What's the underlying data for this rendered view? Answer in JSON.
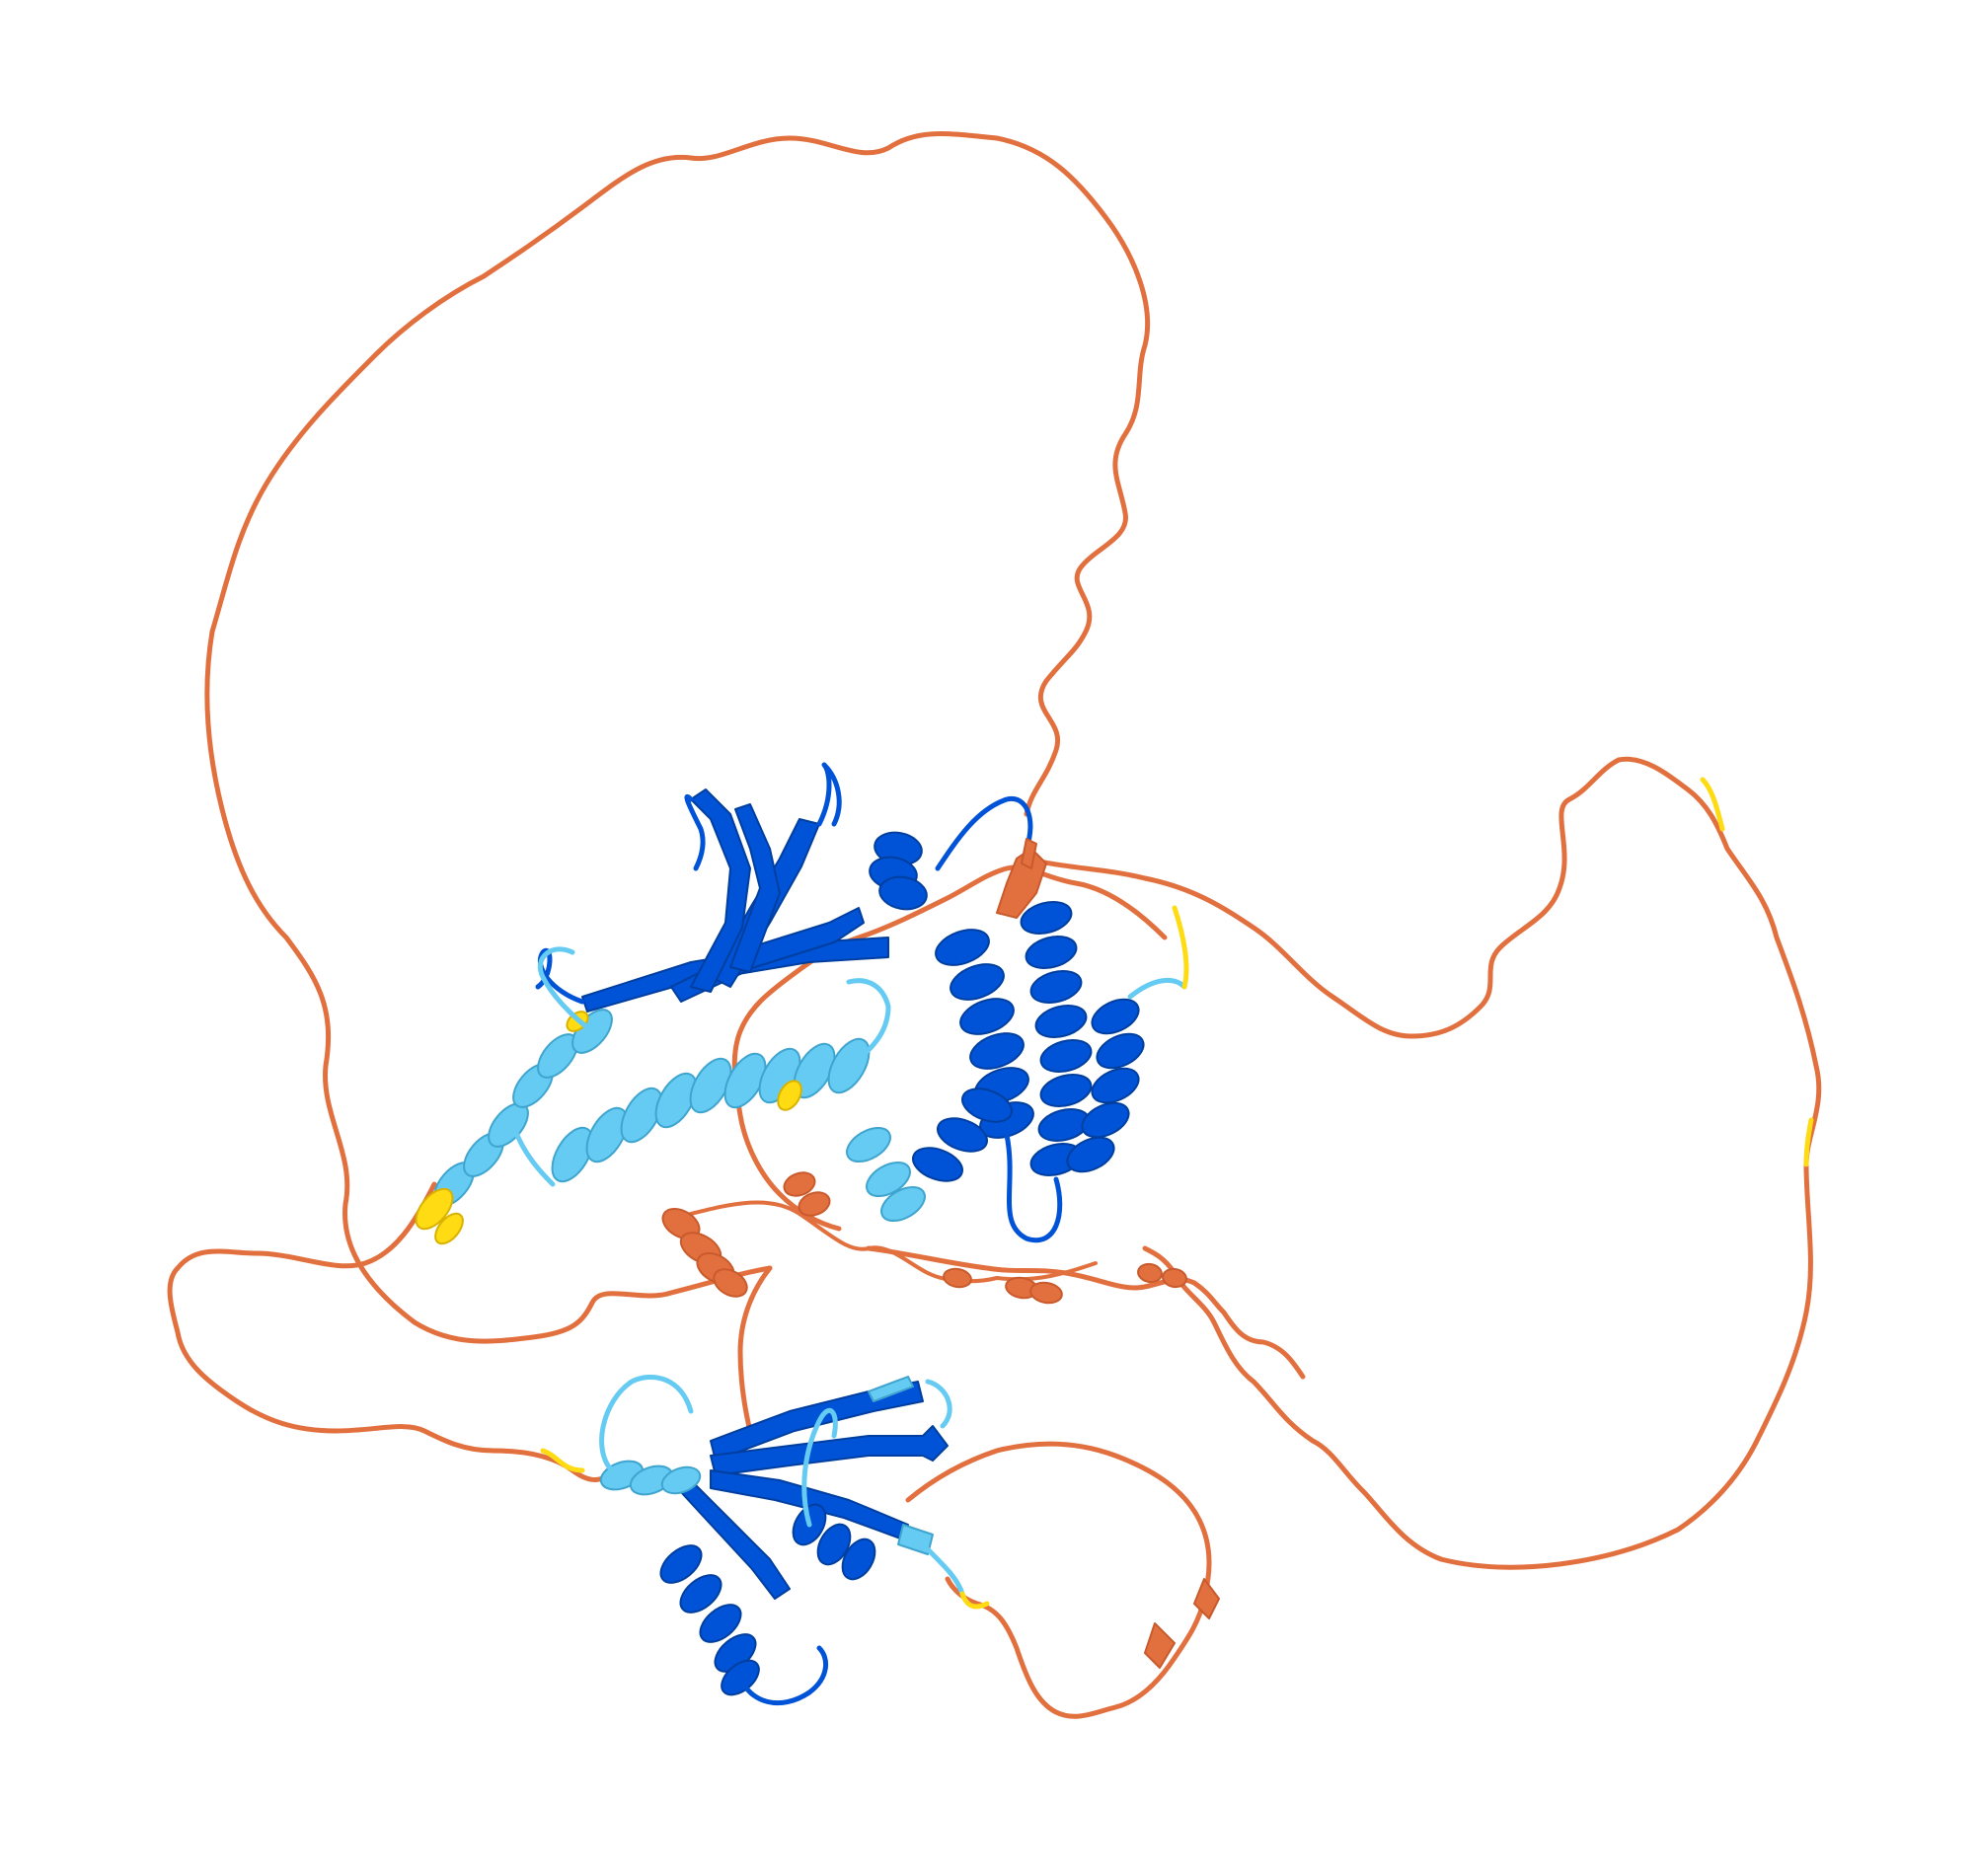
{
  "image": {
    "subject": "protein-structure-cartoon",
    "background": "#ffffff"
  },
  "colors": {
    "very_high": "#0053d6",
    "confident": "#65cbf3",
    "low": "#ffdb13",
    "very_low": "#ff7d45",
    "very_low_rendered": "#e2703f",
    "very_high_dark": "#0045b5",
    "confident_dark": "#4fb3dd",
    "very_low_dark": "#c95a2c"
  },
  "regions": [
    {
      "name": "upper-beta-sheet",
      "confidence": "very_high"
    },
    {
      "name": "right-helical-bundle",
      "confidence": "very_high"
    },
    {
      "name": "central-light-helices",
      "confidence": "confident"
    },
    {
      "name": "lower-domain",
      "confidence": "very_high"
    },
    {
      "name": "long-disordered-loops",
      "confidence": "very_low"
    }
  ]
}
